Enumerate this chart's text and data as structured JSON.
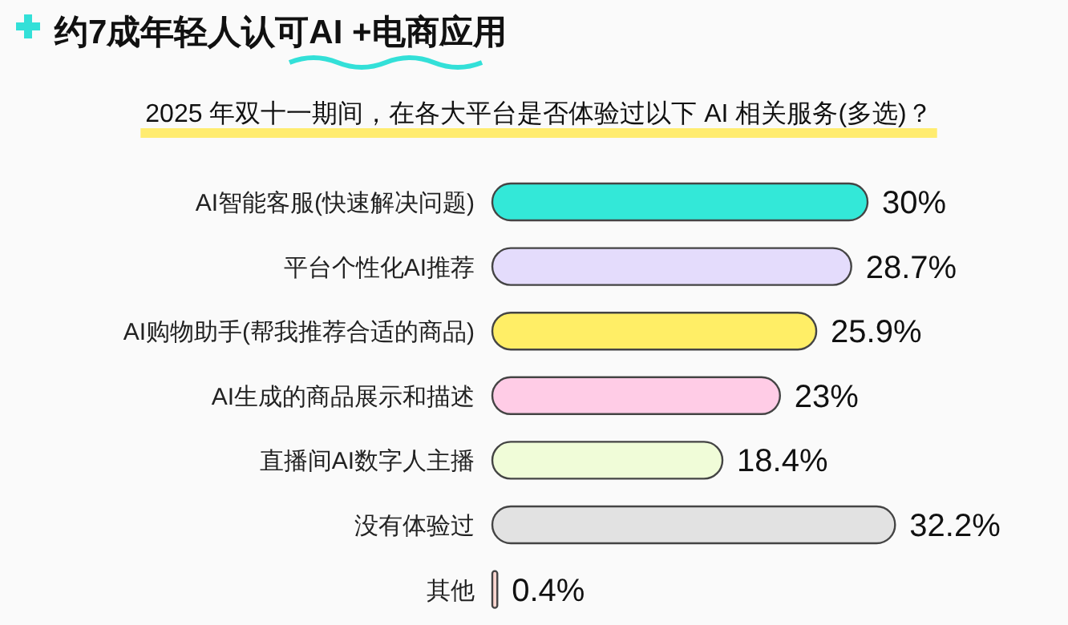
{
  "chart_data": {
    "type": "bar",
    "orientation": "horizontal",
    "relative": false,
    "title": "约7成年轻人认可AI +电商应用",
    "subtitle": "2025 年双十一期间，在各大平台是否体验过以下 AI 相关服务(多选)？",
    "categories": [
      "AI智能客服(快速解决问题)",
      "平台个性化AI推荐",
      "AI购物助手(帮我推荐合适的商品)",
      "AI生成的商品展示和描述",
      "直播间AI数字人主播",
      "没有体验过",
      "其他"
    ],
    "values": [
      30,
      28.7,
      25.9,
      23,
      18.4,
      32.2,
      0.4
    ],
    "value_labels": [
      "30%",
      "28.7%",
      "25.9%",
      "23%",
      "18.4%",
      "32.2%",
      "0.4%"
    ],
    "colors": [
      "#33e8d8",
      "#e4dcfc",
      "#ffee66",
      "#ffcce6",
      "#f0fcd8",
      "#e2e2e2",
      "#ffd6d0"
    ],
    "tick_labels": "x"
  }
}
